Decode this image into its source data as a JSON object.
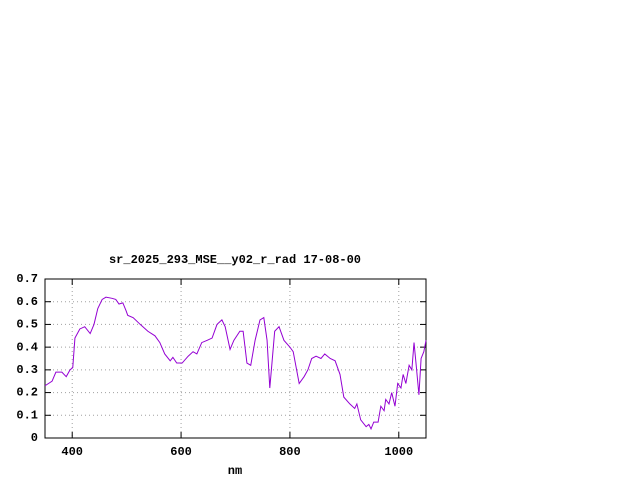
{
  "chart_data": {
    "type": "line",
    "title": "sr_2025_293_MSE__y02_r_rad 17-08-00",
    "x_label": "nm",
    "x": [
      350,
      363,
      370,
      381,
      389,
      396,
      401,
      405,
      414,
      423,
      433,
      440,
      447,
      455,
      462,
      473,
      480,
      486,
      493,
      499,
      502,
      512,
      525,
      539,
      552,
      561,
      570,
      580,
      585,
      592,
      602,
      613,
      622,
      629,
      638,
      648,
      657,
      666,
      675,
      681,
      690,
      697,
      708,
      714,
      721,
      728,
      736,
      745,
      752,
      758,
      763,
      767,
      772,
      780,
      789,
      800,
      806,
      817,
      826,
      833,
      840,
      848,
      857,
      864,
      874,
      883,
      892,
      899,
      910,
      919,
      923,
      930,
      940,
      945,
      949,
      954,
      962,
      967,
      973,
      976,
      982,
      987,
      993,
      998,
      1004,
      1008,
      1013,
      1019,
      1024,
      1028,
      1032,
      1037,
      1041,
      1046,
      1050
    ],
    "series": [
      {
        "color": "#9400d3",
        "values": [
          0.23,
          0.25,
          0.29,
          0.29,
          0.27,
          0.3,
          0.31,
          0.44,
          0.48,
          0.49,
          0.46,
          0.5,
          0.57,
          0.61,
          0.62,
          0.615,
          0.61,
          0.59,
          0.595,
          0.56,
          0.54,
          0.53,
          0.5,
          0.47,
          0.45,
          0.42,
          0.37,
          0.34,
          0.355,
          0.33,
          0.33,
          0.36,
          0.38,
          0.37,
          0.42,
          0.43,
          0.44,
          0.5,
          0.52,
          0.49,
          0.39,
          0.43,
          0.47,
          0.47,
          0.33,
          0.32,
          0.43,
          0.52,
          0.53,
          0.43,
          0.22,
          0.33,
          0.47,
          0.49,
          0.43,
          0.4,
          0.38,
          0.24,
          0.27,
          0.3,
          0.35,
          0.36,
          0.35,
          0.37,
          0.35,
          0.34,
          0.28,
          0.18,
          0.15,
          0.13,
          0.15,
          0.08,
          0.05,
          0.06,
          0.04,
          0.07,
          0.07,
          0.14,
          0.12,
          0.17,
          0.15,
          0.2,
          0.14,
          0.24,
          0.22,
          0.28,
          0.24,
          0.32,
          0.3,
          0.42,
          0.32,
          0.19,
          0.35,
          0.38,
          0.43
        ]
      }
    ],
    "xlim": [
      350,
      1050
    ],
    "xticks": [
      400,
      600,
      800,
      1000
    ],
    "ylim": [
      0,
      0.7
    ],
    "yticks": [
      0,
      0.1,
      0.2,
      0.3,
      0.4,
      0.5,
      0.6,
      0.7
    ],
    "grid": true
  }
}
